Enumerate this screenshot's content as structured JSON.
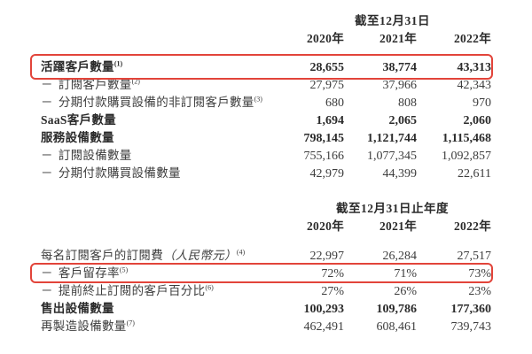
{
  "document": {
    "background": "#ffffff",
    "text_color": "#3d3d3d",
    "highlight_border_color": "#e2443a"
  },
  "table1": {
    "period_header": "截至12月31日",
    "years": [
      "2020年",
      "2021年",
      "2022年"
    ],
    "rows": [
      {
        "label": "活躍客戶數量",
        "sup": "(1)",
        "values": [
          "28,655",
          "38,774",
          "43,313"
        ]
      },
      {
        "dash": "－",
        "label": "訂閱客戶數量",
        "sup": "(2)",
        "values": [
          "27,975",
          "37,966",
          "42,343"
        ]
      },
      {
        "dash": "－",
        "label": "分期付款購買設備的非訂閱客戶數量",
        "sup": "(3)",
        "values": [
          "680",
          "808",
          "970"
        ]
      },
      {
        "label": "SaaS客戶數量",
        "values": [
          "1,694",
          "2,065",
          "2,060"
        ]
      },
      {
        "label": "服務設備數量",
        "values": [
          "798,145",
          "1,121,744",
          "1,115,468"
        ]
      },
      {
        "dash": "－",
        "label": "訂閱設備數量",
        "values": [
          "755,166",
          "1,077,345",
          "1,092,857"
        ]
      },
      {
        "dash": "－",
        "label": "分期付款購買設備數量",
        "values": [
          "42,979",
          "44,399",
          "22,611"
        ]
      }
    ]
  },
  "table2": {
    "period_header": "截至12月31日止年度",
    "years": [
      "2020年",
      "2021年",
      "2022年"
    ],
    "rows": [
      {
        "label": "每名訂閱客戶的訂閱費",
        "paren": "（人民幣元）",
        "sup": "(4)",
        "values": [
          "22,997",
          "26,284",
          "27,517"
        ]
      },
      {
        "dash": "－",
        "label": "客戶留存率",
        "sup": "(5)",
        "values": [
          "72%",
          "71%",
          "73%"
        ]
      },
      {
        "dash": "－",
        "label": "提前終止訂閱的客戶百分比",
        "sup": "(6)",
        "values": [
          "27%",
          "26%",
          "23%"
        ]
      },
      {
        "label": "售出設備數量",
        "values": [
          "100,293",
          "109,786",
          "177,360"
        ]
      },
      {
        "label": "再製造設備數量",
        "sup": "(7)",
        "values": [
          "462,491",
          "608,461",
          "739,743"
        ]
      }
    ]
  }
}
